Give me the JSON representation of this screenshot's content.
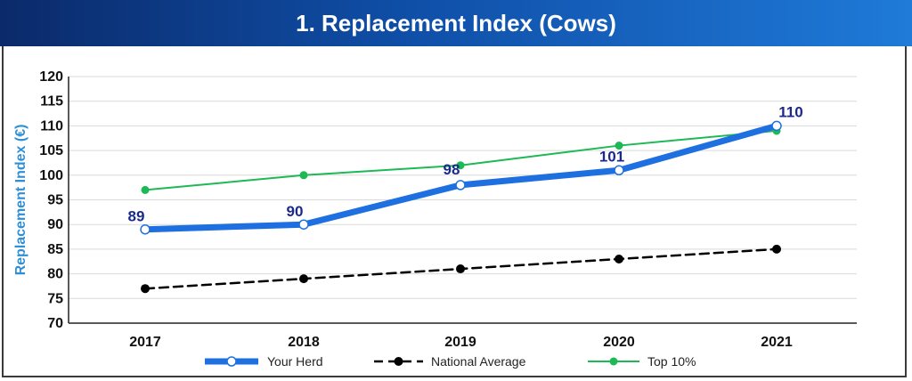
{
  "header": {
    "title": "1. Replacement Index (Cows)"
  },
  "chart_data": {
    "type": "line",
    "title": "1. Replacement Index (Cows)",
    "ylabel": "Replacement Index (€)",
    "xlabel": "",
    "categories": [
      "2017",
      "2018",
      "2019",
      "2020",
      "2021"
    ],
    "ylim": [
      70,
      120
    ],
    "yticks": [
      70,
      75,
      80,
      85,
      90,
      95,
      100,
      105,
      110,
      115,
      120
    ],
    "grid": true,
    "legend_position": "bottom",
    "series": [
      {
        "name": "Your Herd",
        "values": [
          89,
          90,
          98,
          101,
          110
        ],
        "color": "#1e6fe0",
        "style": "thick-solid",
        "data_labels": [
          "89",
          "90",
          "98",
          "101",
          "110"
        ]
      },
      {
        "name": "National Average",
        "values": [
          77,
          79,
          81,
          83,
          85
        ],
        "color": "#000000",
        "style": "dashed"
      },
      {
        "name": "Top 10%",
        "values": [
          97,
          100,
          102,
          106,
          109
        ],
        "color": "#1db954",
        "style": "solid"
      }
    ]
  }
}
